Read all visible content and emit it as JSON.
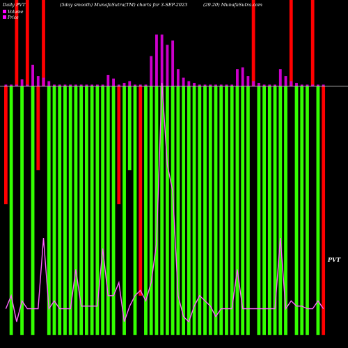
{
  "header": {
    "left": "Daily PVT",
    "center": "(5day smooth) MunafaSutra(TM) charts for 3-SEP-2023",
    "right": "(29.20) MunafaSutra.com"
  },
  "legend": [
    {
      "label": "Volume",
      "color": "#ff00ff"
    },
    {
      "label": "Price",
      "color": "#ff00ff"
    }
  ],
  "end_label": "PVT",
  "colors": {
    "up": "#33ff00",
    "down": "#ff0000",
    "volume": "#cc00cc",
    "price_line": "#ff66ff",
    "background": "#000000",
    "baseline": "#c8c8c8"
  },
  "chart_data": {
    "type": "bar",
    "baseline_note": "bars drawn below/above a centre baseline; values relative units (0 = baseline, -1 = bottom, +1 = top)",
    "pvt_bars": [
      {
        "dir": "down",
        "v": -0.45
      },
      {
        "dir": "up",
        "v": -0.95
      },
      {
        "dir": "down",
        "v": 1.0
      },
      {
        "dir": "up",
        "v": -0.95
      },
      {
        "dir": "down",
        "v": 1.0
      },
      {
        "dir": "up",
        "v": -0.95
      },
      {
        "dir": "down",
        "v": -0.32
      },
      {
        "dir": "down",
        "v": 1.0
      },
      {
        "dir": "up",
        "v": -0.95
      },
      {
        "dir": "up",
        "v": -0.95
      },
      {
        "dir": "up",
        "v": -0.95
      },
      {
        "dir": "up",
        "v": -0.95
      },
      {
        "dir": "up",
        "v": -0.95
      },
      {
        "dir": "up",
        "v": -0.95
      },
      {
        "dir": "up",
        "v": -0.95
      },
      {
        "dir": "up",
        "v": -0.95
      },
      {
        "dir": "up",
        "v": -0.95
      },
      {
        "dir": "up",
        "v": -0.95
      },
      {
        "dir": "up",
        "v": -0.95
      },
      {
        "dir": "up",
        "v": -0.95
      },
      {
        "dir": "up",
        "v": -0.95
      },
      {
        "dir": "down",
        "v": -0.45
      },
      {
        "dir": "up",
        "v": -0.95
      },
      {
        "dir": "up",
        "v": -0.32
      },
      {
        "dir": "up",
        "v": -0.95
      },
      {
        "dir": "down",
        "v": -0.8
      },
      {
        "dir": "up",
        "v": -0.95
      },
      {
        "dir": "up",
        "v": -0.95
      },
      {
        "dir": "up",
        "v": -0.95
      },
      {
        "dir": "up",
        "v": -0.95
      },
      {
        "dir": "up",
        "v": -0.95
      },
      {
        "dir": "up",
        "v": -0.95
      },
      {
        "dir": "up",
        "v": -0.95
      },
      {
        "dir": "up",
        "v": -0.95
      },
      {
        "dir": "up",
        "v": -0.95
      },
      {
        "dir": "up",
        "v": -0.95
      },
      {
        "dir": "up",
        "v": -0.95
      },
      {
        "dir": "up",
        "v": -0.95
      },
      {
        "dir": "up",
        "v": -0.95
      },
      {
        "dir": "up",
        "v": -0.95
      },
      {
        "dir": "up",
        "v": -0.95
      },
      {
        "dir": "up",
        "v": -0.95
      },
      {
        "dir": "up",
        "v": -0.95
      },
      {
        "dir": "up",
        "v": -0.95
      },
      {
        "dir": "up",
        "v": -0.95
      },
      {
        "dir": "up",
        "v": -0.95
      },
      {
        "dir": "down",
        "v": 1.0
      },
      {
        "dir": "up",
        "v": -0.95
      },
      {
        "dir": "up",
        "v": -0.95
      },
      {
        "dir": "up",
        "v": -0.95
      },
      {
        "dir": "up",
        "v": -0.95
      },
      {
        "dir": "up",
        "v": -0.95
      },
      {
        "dir": "up",
        "v": -0.95
      },
      {
        "dir": "down",
        "v": 1.0
      },
      {
        "dir": "up",
        "v": -0.95
      },
      {
        "dir": "up",
        "v": -0.95
      },
      {
        "dir": "up",
        "v": -0.95
      },
      {
        "dir": "down",
        "v": 1.0
      },
      {
        "dir": "up",
        "v": -0.95
      },
      {
        "dir": "down",
        "v": -0.95
      }
    ],
    "volume_bars": [
      0.02,
      0.02,
      0.02,
      0.08,
      0.02,
      0.25,
      0.12,
      0.1,
      0.06,
      0.02,
      0.02,
      0.02,
      0.02,
      0.02,
      0.02,
      0.02,
      0.02,
      0.02,
      0.02,
      0.13,
      0.09,
      0.02,
      0.04,
      0.06,
      0.02,
      0.02,
      0.02,
      0.35,
      0.6,
      0.6,
      0.48,
      0.53,
      0.2,
      0.1,
      0.06,
      0.04,
      0.02,
      0.02,
      0.02,
      0.02,
      0.02,
      0.02,
      0.02,
      0.2,
      0.22,
      0.12,
      0.06,
      0.04,
      0.02,
      0.02,
      0.02,
      0.2,
      0.12,
      0.06,
      0.04,
      0.02,
      0.02,
      0.02,
      0.02,
      0.02
    ],
    "price_line": [
      -0.85,
      -0.8,
      -0.9,
      -0.82,
      -0.85,
      -0.85,
      -0.85,
      -0.58,
      -0.85,
      -0.82,
      -0.85,
      -0.85,
      -0.85,
      -0.7,
      -0.84,
      -0.84,
      -0.84,
      -0.84,
      -0.62,
      -0.8,
      -0.8,
      -0.75,
      -0.9,
      -0.84,
      -0.8,
      -0.78,
      -0.82,
      -0.75,
      -0.6,
      0.04,
      -0.3,
      -0.4,
      -0.8,
      -0.88,
      -0.9,
      -0.84,
      -0.8,
      -0.82,
      -0.84,
      -0.88,
      -0.85,
      -0.85,
      -0.85,
      -0.7,
      -0.85,
      -0.85,
      -0.85,
      -0.85,
      -0.85,
      -0.85,
      -0.85,
      -0.58,
      -0.85,
      -0.82,
      -0.84,
      -0.84,
      -0.85,
      -0.85,
      -0.82,
      -0.85
    ]
  }
}
